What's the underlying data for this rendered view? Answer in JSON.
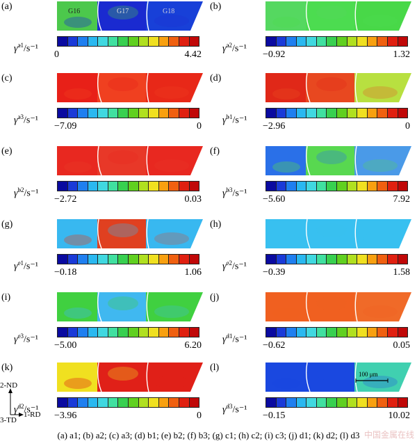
{
  "grain_labels": [
    "G16",
    "G17",
    "G18"
  ],
  "panels": [
    {
      "label": "(a)",
      "var": "a1",
      "min": "0",
      "max": "4.42"
    },
    {
      "label": "(b)",
      "var": "a2",
      "min": "−0.92",
      "max": "1.32"
    },
    {
      "label": "(c)",
      "var": "a3",
      "min": "−7.09",
      "max": "0"
    },
    {
      "label": "(d)",
      "var": "b1",
      "min": "−2.96",
      "max": "0"
    },
    {
      "label": "(e)",
      "var": "b2",
      "min": "−2.72",
      "max": "0.03"
    },
    {
      "label": "(f)",
      "var": "b3",
      "min": "−5.60",
      "max": "7.92"
    },
    {
      "label": "(g)",
      "var": "c1",
      "min": "−0.18",
      "max": "1.06"
    },
    {
      "label": "(h)",
      "var": "c2",
      "min": "−0.39",
      "max": "1.58"
    },
    {
      "label": "(i)",
      "var": "c3",
      "min": "−5.00",
      "max": "6.20"
    },
    {
      "label": "(j)",
      "var": "d1",
      "min": "−0.62",
      "max": "0.05"
    },
    {
      "label": "(k)",
      "var": "d2",
      "min": "−3.96",
      "max": "0"
    },
    {
      "label": "(l)",
      "var": "d3",
      "min": "−0.15",
      "max": "10.02"
    }
  ],
  "unit": "/s⁻¹",
  "symbol": "γ̇",
  "scale_bar": "100 μm",
  "axes": {
    "nd": "2-ND",
    "td": "3-TD",
    "rd": "1-RD"
  },
  "caption": "(a) a1; (b) a2; (c) a3; (d) b1; (e) b2; (f) b3; (g) c1; (h) c2; (i) c3; (j) d1; (k) d2; (l) d3",
  "watermark": "中国金属在线",
  "colors": {
    "colormap": [
      "#0a0aa0",
      "#1a3ad8",
      "#1f7ff0",
      "#2ab8f0",
      "#40d8e0",
      "#40e0a0",
      "#38d050",
      "#60d020",
      "#b0e020",
      "#f0e020",
      "#f8a010",
      "#f06010",
      "#e02010",
      "#c00808"
    ],
    "fills": {
      "a": [
        "#4cc84c",
        "#1a2ad0",
        "#1840d8"
      ],
      "b": [
        "#55d860",
        "#4cdc50",
        "#48d848"
      ],
      "c": [
        "#e82018",
        "#f04020",
        "#e82818"
      ],
      "d": [
        "#e02818",
        "#e84820",
        "#b8e040"
      ],
      "e": [
        "#e82820",
        "#e83828",
        "#e82820"
      ],
      "f": [
        "#2a70e8",
        "#58d850",
        "#4a9ae8"
      ],
      "g": [
        "#38b8f0",
        "#e04020",
        "#38b8f0"
      ],
      "h": [
        "#38c0f0",
        "#38c0f0",
        "#38c0f0"
      ],
      "i": [
        "#40d040",
        "#40b8f0",
        "#40d040"
      ],
      "j": [
        "#f06020",
        "#f06020",
        "#f06a28"
      ],
      "k": [
        "#f0e020",
        "#e02018",
        "#e02018"
      ],
      "l": [
        "#1a48e0",
        "#1a48e0",
        "#40d0b0"
      ]
    }
  }
}
